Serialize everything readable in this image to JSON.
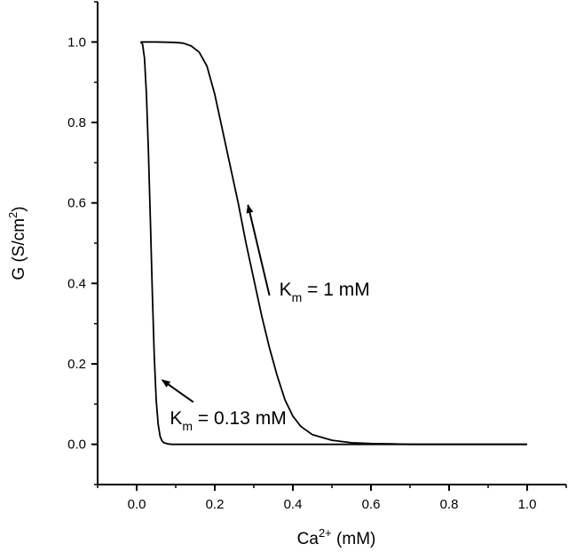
{
  "chart_data": {
    "type": "line",
    "title": "",
    "xlabel": {
      "base": "Ca",
      "sup": "2+",
      "rest": " (mM)"
    },
    "ylabel": {
      "base": "G (S/cm",
      "sup": "2",
      "rest": ")"
    },
    "xlim": [
      -0.1,
      1.1
    ],
    "ylim": [
      -0.1,
      1.1
    ],
    "xticks": [
      0.0,
      0.2,
      0.4,
      0.6,
      0.8,
      1.0
    ],
    "xtick_labels": [
      "0.0",
      "0.2",
      "0.4",
      "0.6",
      "0.8",
      "1.0"
    ],
    "yticks": [
      0.0,
      0.2,
      0.4,
      0.6,
      0.8,
      1.0
    ],
    "ytick_labels": [
      "0.0",
      "0.2",
      "0.4",
      "0.6",
      "0.8",
      "1.0"
    ],
    "grid": false,
    "legend": "none",
    "line_color": "#000000",
    "series": [
      {
        "x": [
          0.01,
          0.015,
          0.02,
          0.025,
          0.03,
          0.035,
          0.04,
          0.045,
          0.05,
          0.055,
          0.06,
          0.065,
          0.07,
          0.08,
          0.09,
          0.1,
          0.15,
          0.2,
          0.3,
          0.5,
          0.7,
          1.0
        ],
        "values": [
          1.0,
          0.995,
          0.96,
          0.87,
          0.73,
          0.56,
          0.38,
          0.22,
          0.11,
          0.05,
          0.02,
          0.008,
          0.004,
          0.001,
          0.0,
          0.0,
          0.0,
          0.0,
          0.0,
          0.0,
          0.0,
          0.0
        ]
      },
      {
        "x": [
          0.01,
          0.05,
          0.1,
          0.12,
          0.14,
          0.16,
          0.18,
          0.2,
          0.22,
          0.24,
          0.26,
          0.28,
          0.3,
          0.32,
          0.34,
          0.36,
          0.38,
          0.4,
          0.42,
          0.45,
          0.5,
          0.55,
          0.6,
          0.65,
          0.7,
          0.8,
          0.9,
          1.0
        ],
        "values": [
          1.0,
          1.0,
          0.999,
          0.997,
          0.99,
          0.975,
          0.94,
          0.87,
          0.78,
          0.69,
          0.6,
          0.5,
          0.41,
          0.32,
          0.24,
          0.17,
          0.11,
          0.07,
          0.045,
          0.024,
          0.01,
          0.004,
          0.002,
          0.001,
          0.0,
          0.0,
          0.0,
          0.0
        ]
      }
    ],
    "annotations": [
      {
        "text_base": "K",
        "text_sub": "m",
        "text_rest": " = 1 mM",
        "arrow_from": [
          0.34,
          0.37
        ],
        "arrow_to": [
          0.285,
          0.595
        ],
        "label_at": [
          0.365,
          0.37
        ]
      },
      {
        "text_base": "K",
        "text_sub": "m",
        "text_rest": " = 0.13 mM",
        "arrow_from": [
          0.145,
          0.105
        ],
        "arrow_to": [
          0.065,
          0.16
        ],
        "label_at": [
          0.085,
          0.05
        ]
      }
    ]
  }
}
